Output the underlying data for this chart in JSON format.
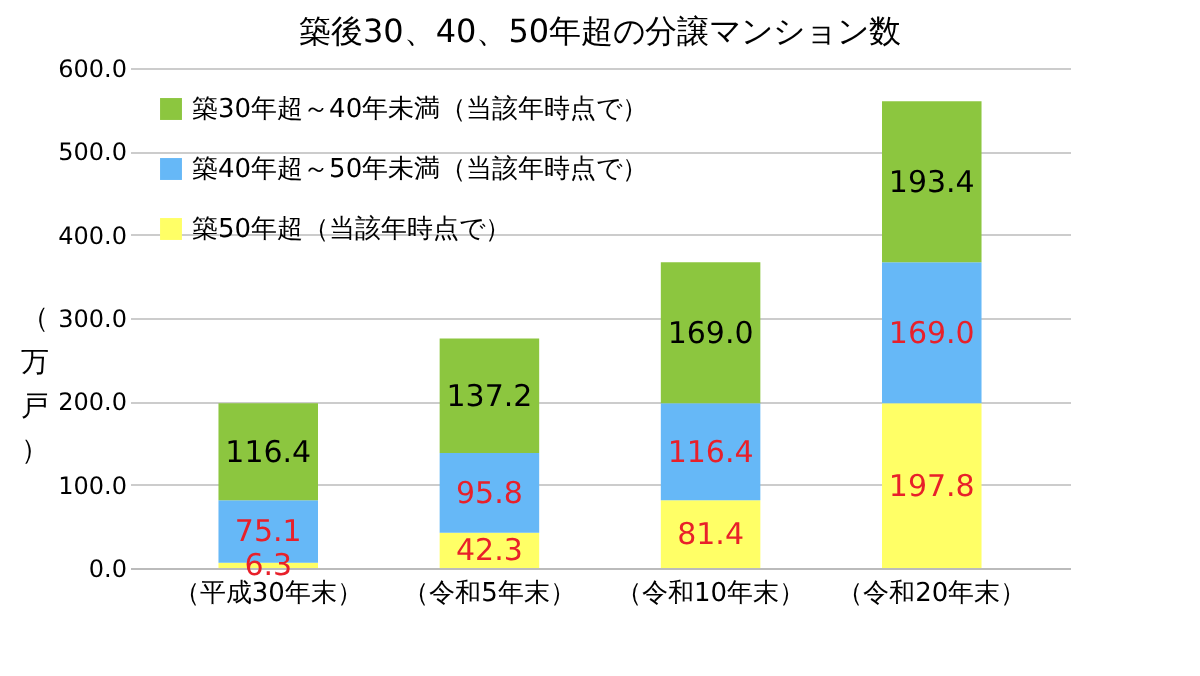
{
  "chart_data": {
    "type": "bar",
    "title": "築後30、40、50年超の分譲マンション数",
    "ylabel": "（万戸）",
    "categories": [
      "（平成30年末）",
      "（令和5年末）",
      "（令和10年末）",
      "（令和20年末）"
    ],
    "stacked": true,
    "series": [
      {
        "name": "築50年超（当該年時点で）",
        "color": "#ffff66",
        "values": [
          6.3,
          42.3,
          81.4,
          197.8
        ],
        "value_labels": [
          "6.3",
          "42.3",
          "81.4",
          "197.8"
        ]
      },
      {
        "name": "築40年超～50年未満（当該年時点で）",
        "color": "#66b8f7",
        "values": [
          75.1,
          95.8,
          116.4,
          169.0
        ],
        "value_labels": [
          "75.1",
          "95.8",
          "116.4",
          "169.0"
        ]
      },
      {
        "name": "築30年超～40年未満（当該年時点で）",
        "color": "#8cc63f",
        "values": [
          116.4,
          137.2,
          169.0,
          193.4
        ],
        "value_labels": [
          "116.4",
          "137.2",
          "169.0",
          "193.4"
        ]
      }
    ],
    "ylim": [
      0,
      600
    ],
    "yticks": [
      {
        "value": 0,
        "label": "0.0"
      },
      {
        "value": 100,
        "label": "100.0"
      },
      {
        "value": 200,
        "label": "200.0"
      },
      {
        "value": 300,
        "label": "300.0"
      },
      {
        "value": 400,
        "label": "400.0"
      },
      {
        "value": 500,
        "label": "500.0"
      },
      {
        "value": 600,
        "label": "600.0"
      }
    ],
    "grid": "y",
    "legend": "top left"
  }
}
